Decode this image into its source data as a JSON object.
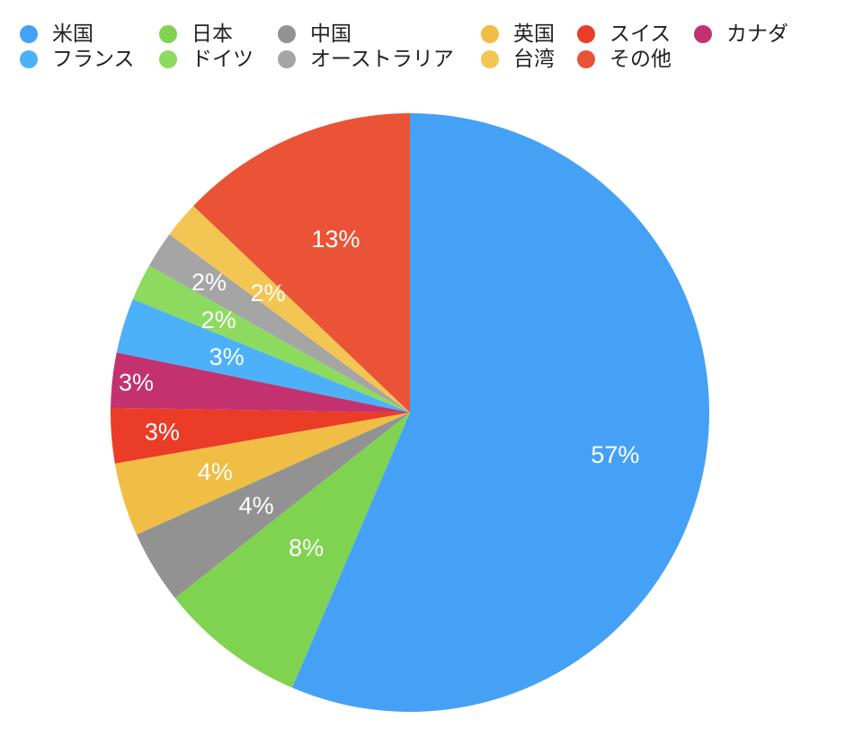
{
  "chart_data": {
    "type": "pie",
    "legend_position": "top",
    "slices": [
      {
        "name": "米国",
        "value": 57,
        "label": "57%",
        "color": "#45A1F6"
      },
      {
        "name": "日本",
        "value": 8,
        "label": "8%",
        "color": "#80D350"
      },
      {
        "name": "中国",
        "value": 4,
        "label": "4%",
        "color": "#929292"
      },
      {
        "name": "英国",
        "value": 4,
        "label": "4%",
        "color": "#F0BD45"
      },
      {
        "name": "スイス",
        "value": 3,
        "label": "3%",
        "color": "#EA3C26"
      },
      {
        "name": "カナダ",
        "value": 3,
        "label": "3%",
        "color": "#C3326F"
      },
      {
        "name": "フランス",
        "value": 3,
        "label": "3%",
        "color": "#4CB1F9"
      },
      {
        "name": "ドイツ",
        "value": 2,
        "label": "2%",
        "color": "#8DDB5E"
      },
      {
        "name": "オーストラリア",
        "value": 2,
        "label": "2%",
        "color": "#A5A5A5"
      },
      {
        "name": "台湾",
        "value": 2,
        "label": "2%",
        "color": "#F3C553"
      },
      {
        "name": "その他",
        "value": 13,
        "label": "13%",
        "color": "#EA5336"
      }
    ]
  }
}
